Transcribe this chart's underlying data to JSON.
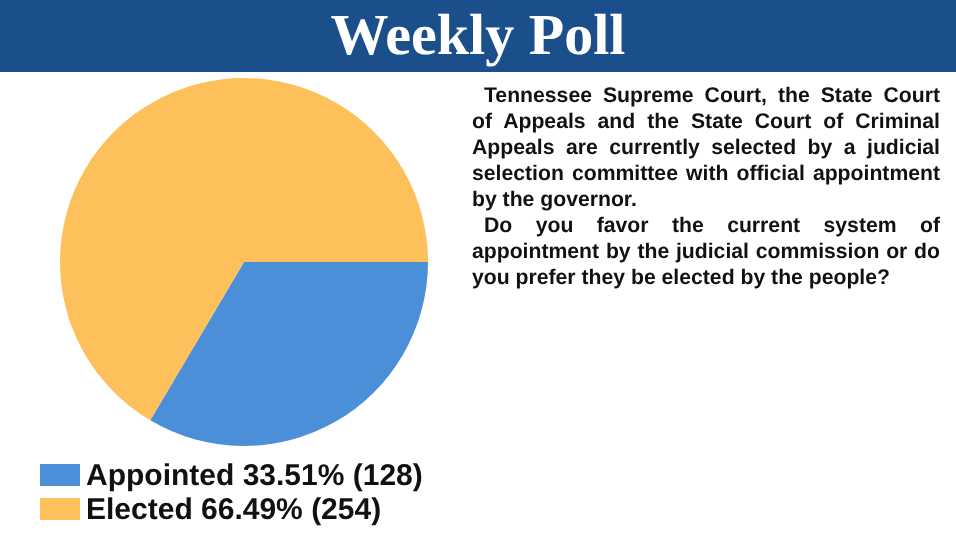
{
  "chart_data": {
    "type": "pie",
    "title": "Weekly Poll",
    "categories": [
      "Appointed",
      "Elected"
    ],
    "values": [
      128,
      254
    ],
    "value_labels": [
      "33.51% (128)",
      "66.49% (254)"
    ],
    "colors": [
      "#4b8fd8",
      "#fdc05a"
    ],
    "legend": "bottom left",
    "annotations": [
      "Tennessee Supreme Court, the State Court of Appeals and the State Court of Criminal Appeals are currently selected by a judicial selection committee with official appointment by the governor.",
      "Do you favor the current system of appointment by the judicial commission or do you prefer they be elected by the people?"
    ]
  }
}
